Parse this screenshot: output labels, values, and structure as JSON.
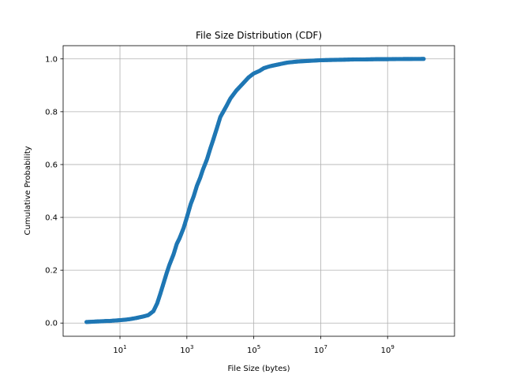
{
  "chart_data": {
    "type": "scatter",
    "title": "File Size Distribution (CDF)",
    "xlabel": "File Size (bytes)",
    "ylabel": "Cumulative Probability",
    "xscale": "log",
    "xlim": [
      0.2,
      100000000000.0
    ],
    "ylim": [
      -0.05,
      1.05
    ],
    "grid": true,
    "marker_color": "#1f77b4",
    "x_ticks": [
      {
        "value": 10,
        "base": "10",
        "exp": "1"
      },
      {
        "value": 1000,
        "base": "10",
        "exp": "3"
      },
      {
        "value": 100000,
        "base": "10",
        "exp": "5"
      },
      {
        "value": 10000000,
        "base": "10",
        "exp": "7"
      },
      {
        "value": 1000000000,
        "base": "10",
        "exp": "9"
      }
    ],
    "y_ticks": [
      "0.0",
      "0.2",
      "0.4",
      "0.6",
      "0.8",
      "1.0"
    ],
    "points": [
      {
        "x": 1,
        "y": 0.004
      },
      {
        "x": 2,
        "y": 0.006
      },
      {
        "x": 3,
        "y": 0.007
      },
      {
        "x": 4,
        "y": 0.008
      },
      {
        "x": 5,
        "y": 0.008
      },
      {
        "x": 6,
        "y": 0.009
      },
      {
        "x": 8,
        "y": 0.01
      },
      {
        "x": 10,
        "y": 0.011
      },
      {
        "x": 15,
        "y": 0.013
      },
      {
        "x": 20,
        "y": 0.015
      },
      {
        "x": 30,
        "y": 0.019
      },
      {
        "x": 50,
        "y": 0.025
      },
      {
        "x": 70,
        "y": 0.03
      },
      {
        "x": 100,
        "y": 0.045
      },
      {
        "x": 130,
        "y": 0.075
      },
      {
        "x": 160,
        "y": 0.11
      },
      {
        "x": 200,
        "y": 0.15
      },
      {
        "x": 250,
        "y": 0.19
      },
      {
        "x": 300,
        "y": 0.22
      },
      {
        "x": 400,
        "y": 0.26
      },
      {
        "x": 500,
        "y": 0.3
      },
      {
        "x": 600,
        "y": 0.32
      },
      {
        "x": 800,
        "y": 0.36
      },
      {
        "x": 1000,
        "y": 0.4
      },
      {
        "x": 1300,
        "y": 0.45
      },
      {
        "x": 1600,
        "y": 0.48
      },
      {
        "x": 2000,
        "y": 0.52
      },
      {
        "x": 2500,
        "y": 0.55
      },
      {
        "x": 3000,
        "y": 0.58
      },
      {
        "x": 4000,
        "y": 0.62
      },
      {
        "x": 5000,
        "y": 0.66
      },
      {
        "x": 6000,
        "y": 0.69
      },
      {
        "x": 8000,
        "y": 0.74
      },
      {
        "x": 10000,
        "y": 0.78
      },
      {
        "x": 15000,
        "y": 0.82
      },
      {
        "x": 20000,
        "y": 0.85
      },
      {
        "x": 30000,
        "y": 0.88
      },
      {
        "x": 50000,
        "y": 0.91
      },
      {
        "x": 70000,
        "y": 0.93
      },
      {
        "x": 100000,
        "y": 0.945
      },
      {
        "x": 150000,
        "y": 0.955
      },
      {
        "x": 200000,
        "y": 0.965
      },
      {
        "x": 300000,
        "y": 0.972
      },
      {
        "x": 500000,
        "y": 0.978
      },
      {
        "x": 700000,
        "y": 0.982
      },
      {
        "x": 1000000,
        "y": 0.986
      },
      {
        "x": 2000000,
        "y": 0.99
      },
      {
        "x": 5000000,
        "y": 0.993
      },
      {
        "x": 10000000,
        "y": 0.995
      },
      {
        "x": 20000000,
        "y": 0.996
      },
      {
        "x": 50000000,
        "y": 0.997
      },
      {
        "x": 100000000,
        "y": 0.998
      },
      {
        "x": 200000000,
        "y": 0.998
      },
      {
        "x": 500000000,
        "y": 0.999
      },
      {
        "x": 1000000000,
        "y": 0.999
      },
      {
        "x": 2000000000,
        "y": 0.9995
      },
      {
        "x": 3000000000,
        "y": 0.9996
      },
      {
        "x": 5500000000,
        "y": 0.9998
      },
      {
        "x": 12000000000,
        "y": 1.0
      }
    ]
  }
}
